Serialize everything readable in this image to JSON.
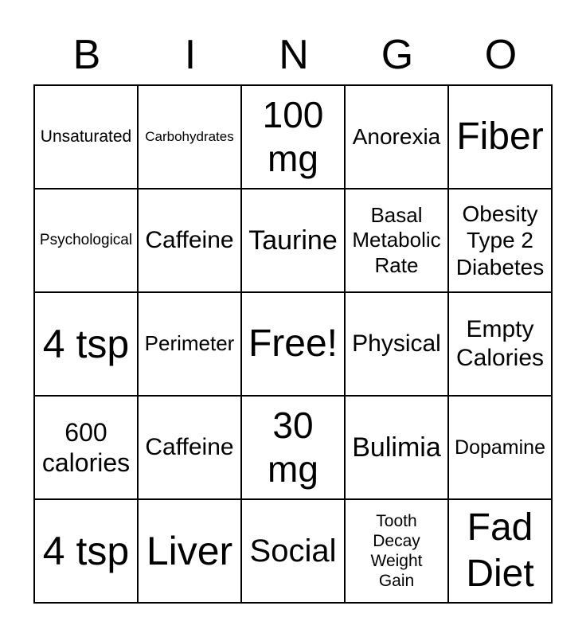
{
  "page": {
    "background_color": "#ffffff",
    "text_color": "#000000",
    "border_color": "#000000"
  },
  "header": {
    "letters": [
      "B",
      "I",
      "N",
      "G",
      "O"
    ]
  },
  "grid": {
    "rows": 5,
    "cols": 5,
    "free_cell_index": 12,
    "cells": [
      {
        "text": "Unsaturated"
      },
      {
        "text": "Carbohydrates"
      },
      {
        "text": "100\nmg"
      },
      {
        "text": "Anorexia"
      },
      {
        "text": "Fiber"
      },
      {
        "text": "Psychological"
      },
      {
        "text": "Caffeine"
      },
      {
        "text": "Taurine"
      },
      {
        "text": "Basal\nMetabolic\nRate"
      },
      {
        "text": "Obesity\nType 2\nDiabetes"
      },
      {
        "text": "4 tsp"
      },
      {
        "text": "Perimeter"
      },
      {
        "text": "Free!"
      },
      {
        "text": "Physical"
      },
      {
        "text": "Empty\nCalories"
      },
      {
        "text": "600\ncalories"
      },
      {
        "text": "Caffeine"
      },
      {
        "text": "30\nmg"
      },
      {
        "text": "Bulimia"
      },
      {
        "text": "Dopamine"
      },
      {
        "text": "4 tsp"
      },
      {
        "text": "Liver"
      },
      {
        "text": "Social"
      },
      {
        "text": "Tooth\nDecay\nWeight\nGain"
      },
      {
        "text": "Fad\nDiet"
      }
    ]
  }
}
